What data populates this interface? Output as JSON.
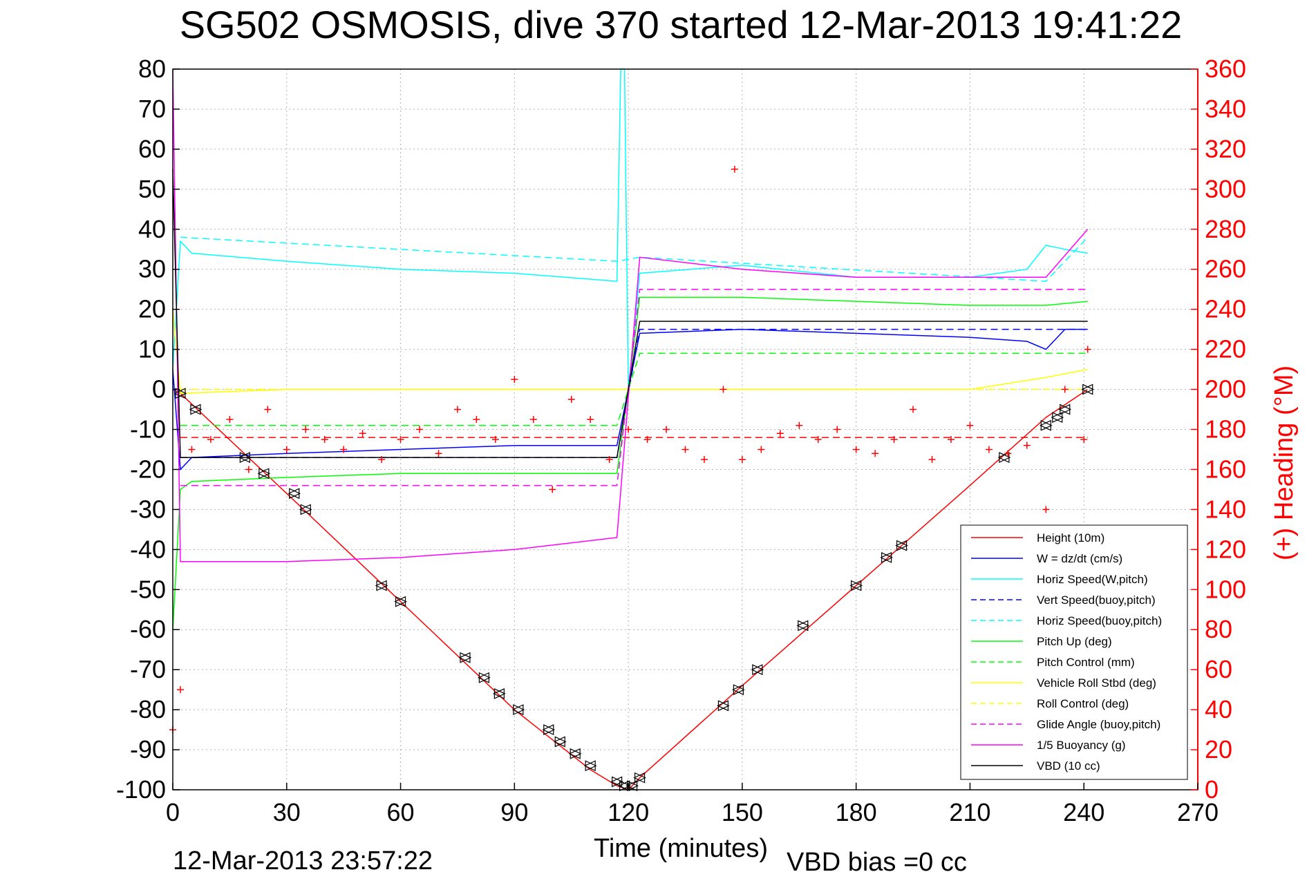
{
  "chart_data": {
    "type": "line",
    "title": "SG502 OSMOSIS, dive 370 started 12-Mar-2013 19:41:22",
    "xlabel": "Time (minutes)",
    "ylabel_right": "(+) Heading (°M)",
    "footer_left": "12-Mar-2013 23:57:22",
    "footer_right": "VBD bias =0 cc",
    "xlim": [
      0,
      270
    ],
    "ylim": [
      -100,
      80
    ],
    "ylim_right": [
      0,
      360
    ],
    "grid": true,
    "legend_position": "lower-right",
    "x_ticks": [
      "0",
      "30",
      "60",
      "90",
      "120",
      "150",
      "180",
      "210",
      "240",
      "270"
    ],
    "y_ticks": [
      "80",
      "70",
      "60",
      "50",
      "40",
      "30",
      "20",
      "10",
      "0",
      "-10",
      "-20",
      "-30",
      "-40",
      "-50",
      "-60",
      "-70",
      "-80",
      "-90",
      "-100"
    ],
    "y_ticks_right": [
      "360",
      "340",
      "320",
      "300",
      "280",
      "260",
      "240",
      "220",
      "200",
      "180",
      "160",
      "140",
      "120",
      "100",
      "80",
      "60",
      "40",
      "20",
      "0"
    ],
    "series": [
      {
        "name": "Height (10m)",
        "color": "#ff0000",
        "style": "solid",
        "x": [
          0,
          2,
          30,
          60,
          90,
          110,
          117,
          120,
          123,
          150,
          180,
          210,
          230,
          241
        ],
        "y": [
          0,
          -1,
          -26,
          -53,
          -80,
          -95,
          -99,
          -100,
          -97,
          -74,
          -49,
          -24,
          -7,
          0
        ]
      },
      {
        "name": "W = dz/dt (cm/s)",
        "color": "#0000ff",
        "style": "solid",
        "x": [
          0,
          2,
          5,
          30,
          60,
          90,
          117,
          120,
          123,
          150,
          180,
          210,
          225,
          230,
          235,
          241
        ],
        "y": [
          5,
          -20,
          -17,
          -16,
          -15,
          -14,
          -14,
          0,
          14,
          15,
          14,
          13,
          12,
          10,
          15,
          15
        ]
      },
      {
        "name": "Horiz Speed(W,pitch)",
        "color": "#00ffff",
        "style": "solid",
        "x": [
          0,
          2,
          5,
          30,
          60,
          90,
          117,
          118,
          119,
          120,
          123,
          150,
          180,
          210,
          225,
          230,
          235,
          241
        ],
        "y": [
          5,
          37,
          34,
          32,
          30,
          29,
          27,
          80,
          80,
          0,
          29,
          31,
          28,
          28,
          30,
          36,
          35,
          34
        ]
      },
      {
        "name": "Vert Speed(buoy,pitch)",
        "color": "#0000ff",
        "style": "dashed",
        "x": [
          2,
          117,
          123,
          230,
          241
        ],
        "y": [
          -17,
          -17,
          15,
          15,
          15
        ]
      },
      {
        "name": "Horiz Speed(buoy,pitch)",
        "color": "#00ffff",
        "style": "dashed",
        "x": [
          2,
          117,
          123,
          230,
          241
        ],
        "y": [
          38,
          32,
          33,
          27,
          38
        ]
      },
      {
        "name": "Pitch Up (deg)",
        "color": "#00ff00",
        "style": "solid",
        "x": [
          0,
          2,
          5,
          30,
          60,
          90,
          117,
          120,
          123,
          150,
          180,
          210,
          230,
          241
        ],
        "y": [
          -60,
          -25,
          -23,
          -22,
          -21,
          -21,
          -21,
          0,
          23,
          23,
          22,
          21,
          21,
          22
        ]
      },
      {
        "name": "Pitch Control (mm)",
        "color": "#00ff00",
        "style": "dashed",
        "x": [
          2,
          117,
          123,
          230,
          241
        ],
        "y": [
          -9,
          -9,
          9,
          9,
          9
        ]
      },
      {
        "name": "Vehicle Roll Stbd (deg)",
        "color": "#ffff00",
        "style": "solid",
        "x": [
          0,
          2,
          30,
          60,
          90,
          117,
          123,
          150,
          180,
          210,
          230,
          241
        ],
        "y": [
          20,
          -1,
          0,
          0,
          0,
          0,
          0,
          0,
          0,
          0,
          3,
          5
        ]
      },
      {
        "name": "Roll Control (deg)",
        "color": "#ffff00",
        "style": "dashed",
        "x": [
          2,
          117,
          123,
          241
        ],
        "y": [
          0,
          0,
          0,
          0
        ]
      },
      {
        "name": "Glide Angle (buoy,pitch)",
        "color": "#ff00ff",
        "style": "dashed",
        "x": [
          2,
          117,
          123,
          230,
          241
        ],
        "y": [
          -24,
          -24,
          25,
          25,
          25
        ]
      },
      {
        "name": "1/5 Buoyancy (g)",
        "color": "#ff00ff",
        "style": "solid",
        "x": [
          0,
          2,
          30,
          60,
          90,
          117,
          123,
          150,
          180,
          210,
          230,
          241
        ],
        "y": [
          80,
          -43,
          -43,
          -42,
          -40,
          -37,
          33,
          30,
          28,
          28,
          28,
          40
        ]
      },
      {
        "name": "VBD (10 cc)",
        "color": "#000000",
        "style": "solid",
        "x": [
          0,
          2,
          117,
          123,
          230,
          241
        ],
        "y": [
          55,
          -17,
          -17,
          17,
          17,
          17
        ]
      }
    ],
    "heading_points": {
      "name": "Heading",
      "color": "#ff0000",
      "marker": "+",
      "axis": "right",
      "x": [
        0,
        2,
        5,
        10,
        15,
        20,
        25,
        30,
        35,
        40,
        45,
        50,
        55,
        60,
        65,
        70,
        75,
        80,
        85,
        90,
        95,
        100,
        105,
        110,
        115,
        120,
        125,
        130,
        135,
        140,
        145,
        148,
        150,
        155,
        160,
        165,
        170,
        175,
        180,
        185,
        190,
        195,
        200,
        205,
        210,
        215,
        220,
        225,
        230,
        235,
        240,
        241
      ],
      "y": [
        30,
        50,
        170,
        175,
        185,
        160,
        190,
        170,
        180,
        175,
        170,
        178,
        165,
        175,
        180,
        168,
        190,
        185,
        175,
        205,
        185,
        150,
        195,
        185,
        165,
        180,
        175,
        180,
        170,
        165,
        200,
        310,
        165,
        170,
        178,
        182,
        175,
        180,
        170,
        168,
        175,
        190,
        165,
        175,
        182,
        170,
        168,
        172,
        140,
        200,
        175,
        220
      ]
    },
    "heading_reference": {
      "color": "#ff0000",
      "style": "dashed",
      "value": 176
    },
    "triangle_markers": {
      "color": "#000000",
      "x": [
        2,
        6,
        19,
        24,
        32,
        35,
        55,
        60,
        77,
        82,
        86,
        91,
        99,
        102,
        106,
        110,
        117,
        119,
        121,
        123,
        145,
        149,
        154,
        166,
        180,
        188,
        192,
        219,
        230,
        233,
        235,
        241
      ],
      "y": [
        -1,
        -5,
        -17,
        -21,
        -26,
        -30,
        -49,
        -53,
        -67,
        -72,
        -76,
        -80,
        -85,
        -88,
        -91,
        -94,
        -98,
        -99,
        -99,
        -97,
        -79,
        -75,
        -70,
        -59,
        -49,
        -42,
        -39,
        -17,
        -9,
        -7,
        -5,
        0
      ]
    }
  }
}
